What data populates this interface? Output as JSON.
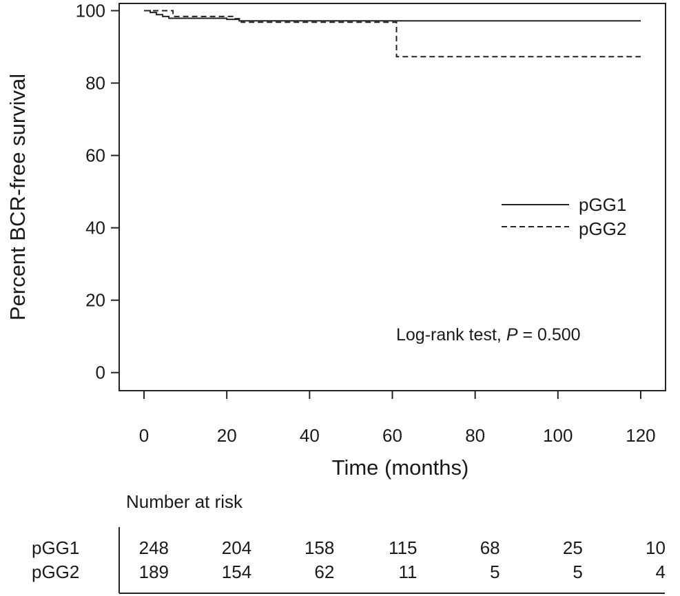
{
  "chart_data": {
    "type": "line",
    "xlabel": "Time (months)",
    "ylabel": "Percent BCR-free survival",
    "xlim": [
      -6,
      126
    ],
    "ylim": [
      -5,
      102
    ],
    "xticks": [
      0,
      20,
      40,
      60,
      80,
      100,
      120
    ],
    "yticks": [
      0,
      20,
      40,
      60,
      80,
      100
    ],
    "grid": false,
    "legend_position": "right",
    "series": [
      {
        "name": "pGG1",
        "style": "solid",
        "points": [
          [
            0,
            100
          ],
          [
            1.5,
            100
          ],
          [
            1.5,
            99.5
          ],
          [
            3,
            99.5
          ],
          [
            3,
            98.9
          ],
          [
            4.5,
            98.9
          ],
          [
            4.5,
            98.4
          ],
          [
            6,
            98.4
          ],
          [
            6,
            97.9
          ],
          [
            20,
            97.9
          ],
          [
            20,
            97.6
          ],
          [
            23,
            97.6
          ],
          [
            23,
            97.2
          ],
          [
            120,
            97.2
          ]
        ]
      },
      {
        "name": "pGG2",
        "style": "dashed",
        "points": [
          [
            0,
            100
          ],
          [
            7,
            100
          ],
          [
            7,
            98.4
          ],
          [
            22,
            98.4
          ],
          [
            22,
            97.8
          ],
          [
            23.5,
            97.8
          ],
          [
            23.5,
            96.8
          ],
          [
            61,
            96.8
          ],
          [
            61,
            87.3
          ],
          [
            120,
            87.3
          ]
        ]
      }
    ],
    "annotation": {
      "prefix": "Log-rank test, ",
      "p_symbol": "P",
      "suffix": " = 0.500"
    },
    "risk_table": {
      "title": "Number at risk",
      "times": [
        0,
        20,
        40,
        60,
        80,
        100,
        120
      ],
      "rows": [
        {
          "label": "pGG1",
          "values": [
            "248",
            "204",
            "158",
            "115",
            "68",
            "25",
            "10"
          ]
        },
        {
          "label": "pGG2",
          "values": [
            "189",
            "154",
            "62",
            "11",
            "5",
            "5",
            "4"
          ]
        }
      ]
    }
  }
}
